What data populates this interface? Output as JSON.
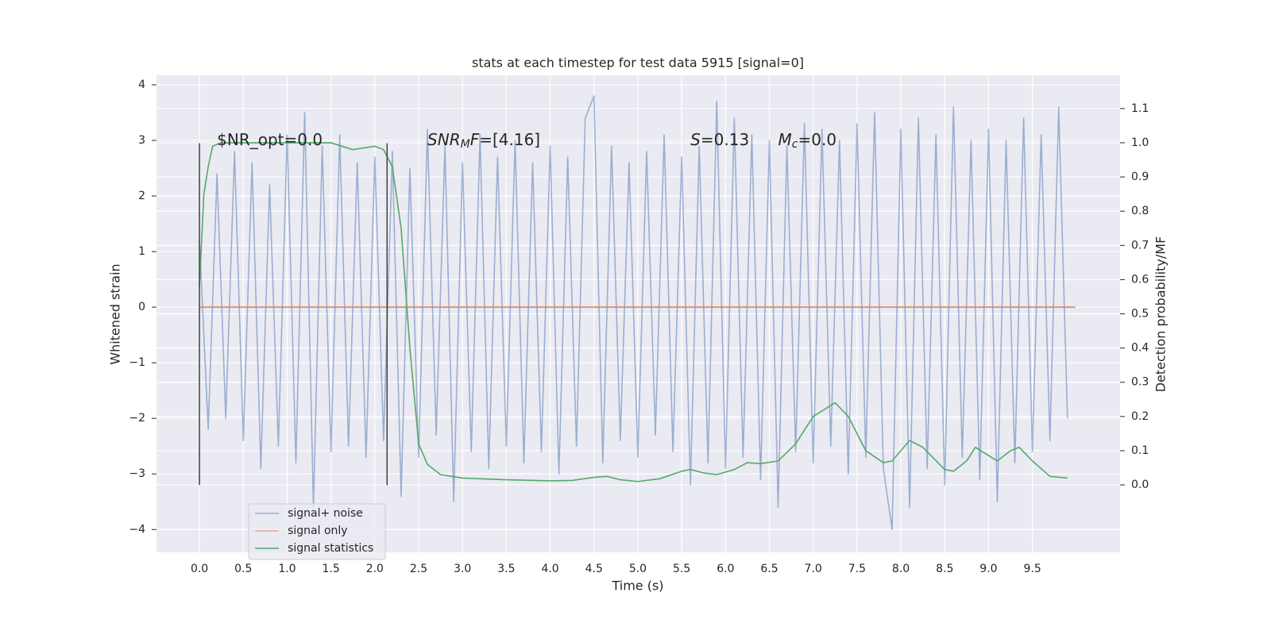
{
  "chart_data": {
    "type": "line",
    "title": "stats at each timestep for test data 5915 [signal=0]",
    "xlabel": "Time (s)",
    "ylabel": "Whitened strain",
    "y2label": "Detection probability/MF",
    "xlim": [
      -0.49,
      10.5
    ],
    "ylim": [
      -4.41,
      4.17
    ],
    "y2lim": [
      -0.197,
      1.197
    ],
    "xticks": [
      {
        "value": 0,
        "label": "0.0"
      },
      {
        "value": 0.5,
        "label": "0.5"
      },
      {
        "value": 1,
        "label": "1.0"
      },
      {
        "value": 1.5,
        "label": "1.5"
      },
      {
        "value": 2,
        "label": "2.0"
      },
      {
        "value": 2.5,
        "label": "2.5"
      },
      {
        "value": 3,
        "label": "3.0"
      },
      {
        "value": 3.5,
        "label": "3.5"
      },
      {
        "value": 4,
        "label": "4.0"
      },
      {
        "value": 4.5,
        "label": "4.5"
      },
      {
        "value": 5,
        "label": "5.0"
      },
      {
        "value": 5.5,
        "label": "5.5"
      },
      {
        "value": 6,
        "label": "6.0"
      },
      {
        "value": 6.5,
        "label": "6.5"
      },
      {
        "value": 7,
        "label": "7.0"
      },
      {
        "value": 7.5,
        "label": "7.5"
      },
      {
        "value": 8,
        "label": "8.0"
      },
      {
        "value": 8.5,
        "label": "8.5"
      },
      {
        "value": 9,
        "label": "9.0"
      },
      {
        "value": 9.5,
        "label": "9.5"
      }
    ],
    "yticks": [
      {
        "value": -4,
        "label": "−4"
      },
      {
        "value": -3,
        "label": "−3"
      },
      {
        "value": -2,
        "label": "−2"
      },
      {
        "value": -1,
        "label": "−1"
      },
      0,
      1,
      2,
      3,
      4
    ],
    "y2ticks": [
      {
        "value": 0,
        "label": "0.0"
      },
      {
        "value": 0.1,
        "label": "0.1"
      },
      {
        "value": 0.2,
        "label": "0.2"
      },
      {
        "value": 0.3,
        "label": "0.3"
      },
      {
        "value": 0.4,
        "label": "0.4"
      },
      {
        "value": 0.5,
        "label": "0.5"
      },
      {
        "value": 0.6,
        "label": "0.6"
      },
      {
        "value": 0.7,
        "label": "0.7"
      },
      {
        "value": 0.8,
        "label": "0.8"
      },
      {
        "value": 0.9,
        "label": "0.9"
      },
      {
        "value": 1,
        "label": "1.0"
      },
      {
        "value": 1.1,
        "label": "1.1"
      }
    ],
    "grid": true,
    "legend": "lower left",
    "series": [
      {
        "name": "signal+ noise",
        "color": "#4c72b0",
        "alpha": 0.5,
        "x": [
          0,
          0.1,
          0.2,
          0.3,
          0.4,
          0.5,
          0.6,
          0.7,
          0.8,
          0.9,
          1,
          1.1,
          1.2,
          1.3,
          1.4,
          1.5,
          1.6,
          1.7,
          1.8,
          1.9,
          2,
          2.1,
          2.2,
          2.3,
          2.4,
          2.5,
          2.6,
          2.7,
          2.8,
          2.9,
          3,
          3.1,
          3.2,
          3.3,
          3.4,
          3.5,
          3.6,
          3.7,
          3.8,
          3.9,
          4,
          4.1,
          4.2,
          4.3,
          4.4,
          4.5,
          4.6,
          4.7,
          4.8,
          4.9,
          5,
          5.1,
          5.2,
          5.3,
          5.4,
          5.5,
          5.6,
          5.7,
          5.8,
          5.9,
          6,
          6.1,
          6.2,
          6.3,
          6.4,
          6.5,
          6.6,
          6.7,
          6.8,
          6.9,
          7,
          7.1,
          7.2,
          7.3,
          7.4,
          7.5,
          7.6,
          7.7,
          7.8,
          7.9,
          8,
          8.1,
          8.2,
          8.3,
          8.4,
          8.5,
          8.6,
          8.7,
          8.8,
          8.9,
          9,
          9.1,
          9.2,
          9.3,
          9.4,
          9.5,
          9.6,
          9.7,
          9.8,
          9.9
        ],
        "values": [
          1.2,
          -2.2,
          2.4,
          -2.0,
          2.8,
          -2.4,
          2.6,
          -2.9,
          2.2,
          -2.5,
          3.1,
          -2.8,
          3.5,
          -3.6,
          2.9,
          -2.6,
          3.1,
          -2.5,
          2.6,
          -2.7,
          2.7,
          -2.4,
          2.8,
          -3.4,
          2.5,
          -2.7,
          3.2,
          -2.3,
          2.9,
          -3.5,
          2.6,
          -2.6,
          3.1,
          -2.9,
          2.7,
          -2.5,
          3.0,
          -2.8,
          2.6,
          -2.6,
          2.9,
          -3.0,
          2.7,
          -2.5,
          3.4,
          3.8,
          -2.8,
          2.9,
          -2.4,
          2.6,
          -2.7,
          2.8,
          -2.3,
          3.1,
          -2.6,
          2.7,
          -3.2,
          2.9,
          -2.8,
          3.7,
          -2.9,
          3.4,
          -2.7,
          3.1,
          -3.1,
          3.0,
          -3.6,
          2.9,
          -2.6,
          3.3,
          -2.8,
          3.2,
          -2.5,
          3.0,
          -3.0,
          3.3,
          -2.7,
          3.5,
          -2.9,
          -4.0,
          3.2,
          -3.6,
          3.4,
          -2.9,
          3.1,
          -3.2,
          3.6,
          -2.7,
          3.0,
          -3.1,
          3.2,
          -3.5,
          3.0,
          -2.8,
          3.4,
          -2.6,
          3.1,
          -2.4,
          3.6,
          -2.0
        ]
      },
      {
        "name": "signal only",
        "color": "#dd8452",
        "x": [
          0,
          9.99
        ],
        "values": [
          0,
          0
        ]
      },
      {
        "name": "signal statistics",
        "color": "#55a868",
        "axis": "y2",
        "x": [
          0,
          0.05,
          0.1,
          0.15,
          0.25,
          0.5,
          1,
          1.5,
          1.75,
          2,
          2.1,
          2.2,
          2.3,
          2.4,
          2.5,
          2.6,
          2.75,
          3,
          3.5,
          4,
          4.25,
          4.5,
          4.65,
          4.8,
          5,
          5.25,
          5.5,
          5.6,
          5.75,
          5.9,
          6.1,
          6.25,
          6.4,
          6.6,
          6.8,
          7,
          7.25,
          7.4,
          7.6,
          7.8,
          7.9,
          8.1,
          8.25,
          8.5,
          8.6,
          8.75,
          8.85,
          9.1,
          9.25,
          9.35,
          9.5,
          9.7,
          9.9
        ],
        "values": [
          0.58,
          0.85,
          0.93,
          0.99,
          1.0,
          1.0,
          1.0,
          1.0,
          0.98,
          0.99,
          0.98,
          0.93,
          0.75,
          0.4,
          0.12,
          0.06,
          0.03,
          0.02,
          0.015,
          0.012,
          0.013,
          0.022,
          0.025,
          0.015,
          0.01,
          0.018,
          0.04,
          0.045,
          0.035,
          0.03,
          0.045,
          0.065,
          0.062,
          0.07,
          0.12,
          0.2,
          0.24,
          0.2,
          0.1,
          0.065,
          0.07,
          0.13,
          0.11,
          0.045,
          0.04,
          0.07,
          0.11,
          0.07,
          0.1,
          0.11,
          0.07,
          0.025,
          0.02
        ]
      }
    ],
    "vlines": {
      "x": [
        0,
        2.14
      ],
      "ymin": -3.2,
      "ymax": 2.95,
      "color": "#404040"
    },
    "annotations": [
      {
        "x": 0.2,
        "y": 3,
        "segments": [
          {
            "text": "$NR_opt=0.0"
          }
        ]
      },
      {
        "x": 2.6,
        "y": 3,
        "segments": [
          {
            "text": "SNR",
            "style": "italic"
          },
          {
            "text": "M",
            "style": "sub"
          },
          {
            "text": "F",
            "style": "italic"
          },
          {
            "text": "=[4.16]"
          }
        ]
      },
      {
        "x": 5.6,
        "y": 3,
        "segments": [
          {
            "text": "S",
            "style": "italic"
          },
          {
            "text": "=0.13"
          }
        ]
      },
      {
        "x": 6.6,
        "y": 3,
        "segments": [
          {
            "text": "M",
            "style": "italic"
          },
          {
            "text": "c",
            "style": "sub"
          },
          {
            "text": "=0.0"
          }
        ]
      }
    ]
  }
}
